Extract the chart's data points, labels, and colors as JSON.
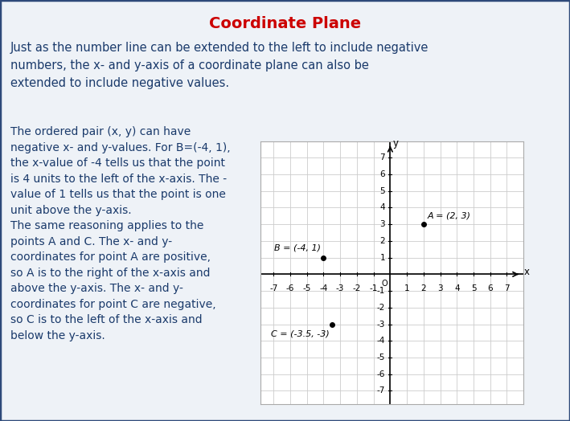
{
  "title": "Coordinate Plane",
  "title_color": "#cc0000",
  "background_color": "#eef2f7",
  "border_color": "#2e4a7a",
  "text_color": "#1a3a6b",
  "para1": "Just as the number line can be extended to the left to include negative\nnumbers, the x- and y-axis of a coordinate plane can also be\nextended to include negative values.",
  "para2_lines": [
    "The ordered pair (x, y) can have",
    "negative x- and y-values. For B=(-4, 1),",
    "the x-value of -4 tells us that the point",
    "is 4 units to the left of the x-axis. The -",
    "value of 1 tells us that the point is one",
    "unit above the y-axis.",
    "The same reasoning applies to the",
    "points A and C. The x- and y-",
    "coordinates for point A are positive,",
    "so A is to the right of the x-axis and",
    "above the y-axis. The x- and y-",
    "coordinates for point C are negative,",
    "so C is to the left of the x-axis and",
    "below the y-axis."
  ],
  "points": {
    "A": [
      2,
      3
    ],
    "B": [
      -4,
      1
    ],
    "C": [
      -3.5,
      -3
    ]
  },
  "point_labels": {
    "A": "A = (2, 3)",
    "B": "B = (-4, 1)",
    "C": "C = (-3.5, -3)"
  },
  "grid_color": "#cccccc",
  "font_size_title": 14,
  "font_size_para1": 10.5,
  "font_size_para2": 10,
  "font_size_axis": 7.5,
  "font_size_point_label": 8
}
